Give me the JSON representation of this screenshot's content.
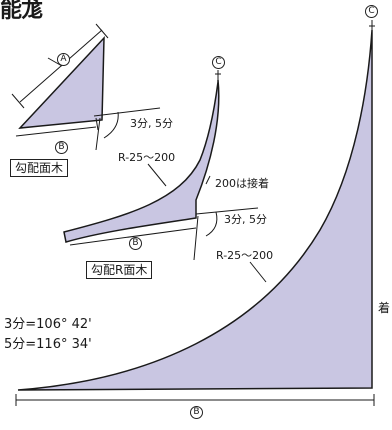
{
  "title": "能尨",
  "labels": {
    "a": "A",
    "b": "B",
    "c": "C",
    "angle": "3分, 5分",
    "radius": "R-25〜200",
    "note_200": "200は接着",
    "box_top": "勾配面木",
    "box_mid": "勾配R面木",
    "angle_3": "3分=106° 42'",
    "angle_5": "5分=116° 34'",
    "side": "着"
  },
  "colors": {
    "fill": "#c9c6e2",
    "stroke": "#1a1a1a"
  }
}
